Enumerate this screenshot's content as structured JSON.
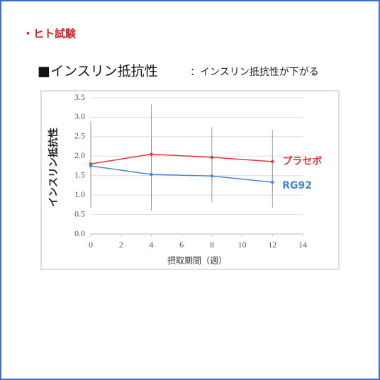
{
  "header": {
    "section": "・ヒト試験",
    "heading": "■インスリン抵抗性",
    "subheading": "：インスリン抵抗性が下がる"
  },
  "chart_data": {
    "type": "line",
    "x_label": "摂取期間（週）",
    "y_label": "インスリン抵抗性",
    "x": [
      0,
      4,
      8,
      12
    ],
    "series": [
      {
        "name": "プラセボ",
        "color": "#e8313a",
        "values": [
          1.8,
          2.05,
          1.97,
          1.86
        ],
        "errors": [
          1.1,
          1.28,
          0.78,
          0.82
        ]
      },
      {
        "name": "RG92",
        "color": "#4a86d0",
        "values": [
          1.75,
          1.53,
          1.49,
          1.33
        ],
        "errors": [
          1.07,
          0.93,
          0.67,
          0.65
        ]
      }
    ],
    "xlim": [
      0,
      14
    ],
    "xticks": [
      0,
      2,
      4,
      6,
      8,
      10,
      12,
      14
    ],
    "ylim": [
      0,
      3.5
    ],
    "yticks": [
      {
        "value": 0,
        "label": "0.0"
      },
      {
        "value": 0.5,
        "label": "0.5"
      },
      {
        "value": 1,
        "label": "1.0"
      },
      {
        "value": 1.5,
        "label": "1.5"
      },
      {
        "value": 2,
        "label": "2.0"
      },
      {
        "value": 2.5,
        "label": "2.5"
      },
      {
        "value": 3,
        "label": "3.0"
      },
      {
        "value": 3.5,
        "label": "3.5"
      }
    ],
    "grid": true
  }
}
